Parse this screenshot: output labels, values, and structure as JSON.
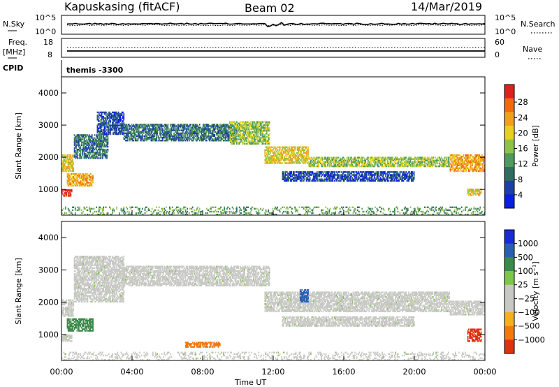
{
  "header": {
    "station": "Kapuskasing (fitACF)",
    "beam": "Beam 02",
    "date": "14/Mar/2019"
  },
  "top_panel": {
    "left_label": "N.Sky",
    "left_ticks": [
      "10^5",
      "10^0"
    ],
    "right_ticks": [
      "10^5",
      "10^0"
    ],
    "right_label": "N.Search"
  },
  "freq_panel": {
    "left_label_1": "Freq.",
    "left_label_2": "[MHz]",
    "left_ticks": [
      "18",
      "8"
    ],
    "right_ticks": [
      "60",
      "0"
    ],
    "right_label": "Nave"
  },
  "cpid": {
    "label": "CPID",
    "value": "themis -3300"
  },
  "colors": {
    "power_scale": [
      "#0a1ee6",
      "#1f3fa8",
      "#2f6e5f",
      "#4f9a5e",
      "#8fc24a",
      "#e6d21e",
      "#f0a020",
      "#f06a10",
      "#e02020"
    ],
    "velocity_scale": [
      "#1a2ad8",
      "#2a5fb0",
      "#3a8a4a",
      "#7ec64a",
      "#c8c8c4",
      "#c8c8c4",
      "#f4b020",
      "#f07a10",
      "#e03010"
    ],
    "ground_scatter": "#c8c8c4"
  },
  "chart_data": [
    {
      "type": "heatmap",
      "name": "power",
      "xlabel": "",
      "ylabel": "Slant Range [km]",
      "xlim": [
        0,
        24
      ],
      "ylim": [
        200,
        4500
      ],
      "yticks": [
        "1000",
        "2000",
        "3000",
        "4000"
      ],
      "colorbar_label": "Power [dB]",
      "colorbar_ticks": [
        "4",
        "8",
        "12",
        "16",
        "20",
        "24",
        "28"
      ],
      "features": [
        {
          "t0": 0.0,
          "t1": 0.7,
          "r0": 1550,
          "r1": 2050,
          "level": 5
        },
        {
          "t0": 0.0,
          "t1": 0.6,
          "r0": 780,
          "r1": 1000,
          "level": 8
        },
        {
          "t0": 0.3,
          "t1": 1.8,
          "r0": 1100,
          "r1": 1500,
          "level": 6
        },
        {
          "t0": 0.7,
          "t1": 2.6,
          "r0": 1950,
          "r1": 2700,
          "level": 2
        },
        {
          "t0": 2.0,
          "t1": 3.5,
          "r0": 2700,
          "r1": 3400,
          "level": 1
        },
        {
          "t0": 3.5,
          "t1": 10.0,
          "r0": 2500,
          "r1": 3000,
          "level": 2
        },
        {
          "t0": 9.5,
          "t1": 11.8,
          "r0": 2400,
          "r1": 3100,
          "level": 4
        },
        {
          "t0": 11.5,
          "t1": 14.0,
          "r0": 1800,
          "r1": 2300,
          "level": 5
        },
        {
          "t0": 14.0,
          "t1": 22.0,
          "r0": 1700,
          "r1": 2000,
          "level": 4
        },
        {
          "t0": 12.5,
          "t1": 20.0,
          "r0": 1250,
          "r1": 1550,
          "level": 1
        },
        {
          "t0": 22.0,
          "t1": 24.0,
          "r0": 1550,
          "r1": 2050,
          "level": 6
        },
        {
          "t0": 23.0,
          "t1": 23.8,
          "r0": 800,
          "r1": 1000,
          "level": 5
        },
        {
          "t0": 0.0,
          "t1": 24.0,
          "r0": 200,
          "r1": 450,
          "level": 3
        }
      ]
    },
    {
      "type": "heatmap",
      "name": "velocity",
      "xlabel": "Time UT",
      "ylabel": "Slant Range [km]",
      "xlim": [
        0,
        24
      ],
      "ylim": [
        200,
        4500
      ],
      "xticks": [
        "00:00",
        "04:00",
        "08:00",
        "12:00",
        "16:00",
        "20:00",
        "00:00"
      ],
      "yticks": [
        "1000",
        "2000",
        "3000",
        "4000"
      ],
      "colorbar_label": "Velocity [m s⁻¹]",
      "colorbar_ticks": [
        "1000",
        "500",
        "100",
        "25",
        "−25",
        "−100",
        "−500",
        "−1000"
      ],
      "features": [
        {
          "t0": 0.0,
          "t1": 0.7,
          "r0": 1550,
          "r1": 2050,
          "vel": "gs"
        },
        {
          "t0": 0.0,
          "t1": 0.6,
          "r0": 780,
          "r1": 1000,
          "vel": "gs"
        },
        {
          "t0": 0.3,
          "t1": 1.8,
          "r0": 1100,
          "r1": 1500,
          "vel": 150
        },
        {
          "t0": 0.7,
          "t1": 3.5,
          "r0": 2000,
          "r1": 3400,
          "vel": "gs"
        },
        {
          "t0": 3.5,
          "t1": 11.8,
          "r0": 2500,
          "r1": 3100,
          "vel": "gs"
        },
        {
          "t0": 11.5,
          "t1": 22.0,
          "r0": 1700,
          "r1": 2300,
          "vel": "gs"
        },
        {
          "t0": 12.5,
          "t1": 20.0,
          "r0": 1250,
          "r1": 1550,
          "vel": "gs"
        },
        {
          "t0": 13.5,
          "t1": 14.0,
          "r0": 2000,
          "r1": 2400,
          "vel": 500
        },
        {
          "t0": 22.0,
          "t1": 24.0,
          "r0": 1600,
          "r1": 2050,
          "vel": "gs"
        },
        {
          "t0": 23.0,
          "t1": 23.8,
          "r0": 780,
          "r1": 1150,
          "vel": -300
        },
        {
          "t0": 7.0,
          "t1": 9.0,
          "r0": 600,
          "r1": 750,
          "vel": -200
        },
        {
          "t0": 0.0,
          "t1": 24.0,
          "r0": 200,
          "r1": 450,
          "vel": "gs"
        }
      ]
    }
  ]
}
